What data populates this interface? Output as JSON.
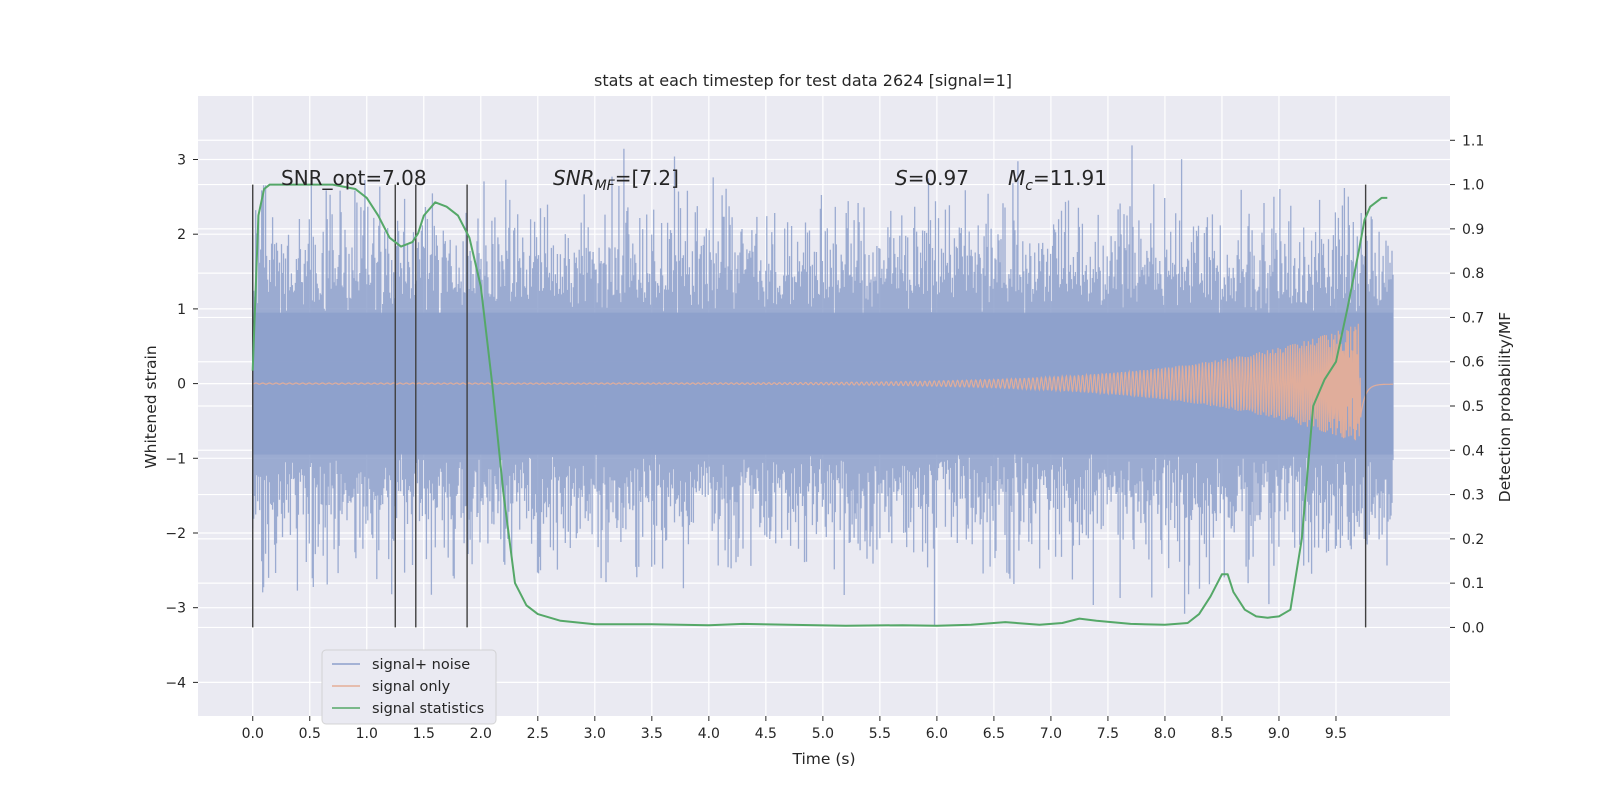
{
  "chart_data": {
    "type": "line",
    "title": "stats at each timestep for test data 2624 [signal=1]",
    "xlabel": "Time (s)",
    "ylabel_left": "Whitened strain",
    "ylabel_right": "Detection probability/MF",
    "xlim": [
      -0.48,
      10.5
    ],
    "ylim_left": [
      -4.45,
      3.85
    ],
    "ylim_right": [
      -0.2,
      1.2
    ],
    "x_ticks": [
      "0.0",
      "0.5",
      "1.0",
      "1.5",
      "2.0",
      "2.5",
      "3.0",
      "3.5",
      "4.0",
      "4.5",
      "5.0",
      "5.5",
      "6.0",
      "6.5",
      "7.0",
      "7.5",
      "8.0",
      "8.5",
      "9.0",
      "9.5"
    ],
    "y_ticks_left": [
      "3",
      "2",
      "1",
      "0",
      "−1",
      "−2",
      "−3",
      "−4"
    ],
    "y_ticks_right": [
      "1.1",
      "1.0",
      "0.9",
      "0.8",
      "0.7",
      "0.6",
      "0.5",
      "0.4",
      "0.3",
      "0.2",
      "0.1",
      "0.0"
    ],
    "grid": true,
    "legend_position": "lower-left",
    "annotations": {
      "snr_opt": "SNR_opt=7.08",
      "snr_mf_base": "SNR",
      "snr_mf_sub": "MF",
      "snr_mf_value": "=[7.2]",
      "s_label": "S",
      "s_value": "=0.97",
      "mc_base": "M",
      "mc_sub": "c",
      "mc_value": "=11.91"
    },
    "series": [
      {
        "name": "signal+ noise",
        "color": "#8da0cb",
        "kind": "noise",
        "x_range": [
          0.0,
          10.0
        ],
        "envelope_approx": [
          -3.6,
          3.5
        ]
      },
      {
        "name": "signal only",
        "color": "#e5ae98",
        "kind": "chirp",
        "x_range": [
          0.0,
          10.0
        ],
        "peak_time": 9.7,
        "peak_amplitude": 0.8
      },
      {
        "name": "signal statistics",
        "color": "#55a868",
        "axis": "right",
        "x": [
          0.0,
          0.05,
          0.1,
          0.15,
          0.2,
          0.3,
          0.5,
          0.7,
          0.9,
          1.0,
          1.1,
          1.2,
          1.3,
          1.4,
          1.45,
          1.5,
          1.6,
          1.7,
          1.8,
          1.9,
          2.0,
          2.1,
          2.2,
          2.3,
          2.4,
          2.5,
          2.7,
          3.0,
          3.5,
          4.0,
          4.3,
          4.7,
          5.2,
          5.7,
          6.0,
          6.3,
          6.6,
          6.9,
          7.1,
          7.25,
          7.4,
          7.7,
          8.0,
          8.2,
          8.3,
          8.4,
          8.5,
          8.55,
          8.6,
          8.7,
          8.8,
          8.9,
          9.0,
          9.1,
          9.2,
          9.3,
          9.4,
          9.5,
          9.6,
          9.7,
          9.75,
          9.8,
          9.85,
          9.9,
          9.95
        ],
        "y": [
          0.58,
          0.93,
          0.99,
          1.0,
          1.0,
          1.0,
          1.0,
          1.0,
          0.99,
          0.97,
          0.93,
          0.88,
          0.86,
          0.87,
          0.89,
          0.93,
          0.96,
          0.95,
          0.93,
          0.88,
          0.77,
          0.55,
          0.3,
          0.1,
          0.05,
          0.03,
          0.015,
          0.007,
          0.007,
          0.005,
          0.008,
          0.006,
          0.004,
          0.005,
          0.004,
          0.006,
          0.012,
          0.006,
          0.01,
          0.02,
          0.015,
          0.008,
          0.006,
          0.01,
          0.03,
          0.07,
          0.12,
          0.12,
          0.08,
          0.04,
          0.025,
          0.022,
          0.025,
          0.04,
          0.2,
          0.5,
          0.56,
          0.6,
          0.72,
          0.85,
          0.92,
          0.95,
          0.96,
          0.97,
          0.97
        ]
      },
      {
        "name": "threshold markers",
        "color": "#404040",
        "kind": "vlines",
        "x": [
          0.0,
          1.25,
          1.43,
          1.88,
          9.76
        ]
      }
    ]
  }
}
